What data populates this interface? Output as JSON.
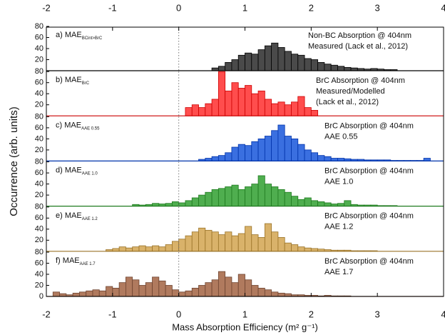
{
  "chart_data": [
    {
      "type": "histogram",
      "label": "a) MAE",
      "label_sub": "BCint>BrC",
      "notes": [
        "Non-BC Absorption @ 404nm",
        "Measured (Lack et al., 2012)"
      ],
      "ylabel": "Occurrence (arb. units)",
      "color": "#4a4a4a",
      "edgecolor": "#000000",
      "bins": [
        0.5,
        0.6,
        0.7,
        0.8,
        0.9,
        1.0,
        1.1,
        1.2,
        1.3,
        1.4,
        1.5,
        1.6,
        1.7,
        1.8,
        1.9,
        2.0,
        2.1,
        2.2,
        2.3,
        2.4,
        2.5,
        2.6,
        2.7,
        2.8,
        2.9,
        3.0,
        3.1,
        3.2,
        3.3
      ],
      "values": [
        5,
        8,
        15,
        20,
        28,
        32,
        30,
        38,
        45,
        50,
        42,
        35,
        30,
        28,
        22,
        20,
        15,
        12,
        10,
        8,
        6,
        5,
        4,
        3,
        4,
        3,
        2,
        2
      ],
      "xlim": [
        -2,
        4
      ],
      "xticks": [
        -2,
        -1,
        0,
        1,
        2,
        3,
        4
      ],
      "ylim": [
        0,
        80
      ],
      "yticks": [
        20,
        40,
        60,
        80
      ],
      "vline": 0
    },
    {
      "type": "histogram",
      "label": "b) MAE",
      "label_sub": "BrC",
      "notes": [
        "BrC Absorption @ 404nm",
        "Measured/Modelled",
        "(Lack et al., 2012)"
      ],
      "color": "#ff4d4d",
      "edgecolor": "#cc0000",
      "bins": [
        0.1,
        0.2,
        0.3,
        0.4,
        0.5,
        0.6,
        0.7,
        0.8,
        0.9,
        1.0,
        1.1,
        1.2,
        1.3,
        1.4,
        1.5,
        1.6,
        1.7,
        1.8,
        1.9,
        2.0,
        2.1
      ],
      "values": [
        15,
        20,
        15,
        22,
        30,
        80,
        45,
        60,
        50,
        55,
        40,
        45,
        30,
        22,
        25,
        20,
        25,
        35,
        15,
        10
      ],
      "xlim": [
        -2,
        4
      ],
      "ylim": [
        0,
        80
      ],
      "yticks": [
        20,
        40,
        60,
        80
      ],
      "vline": 0
    },
    {
      "type": "histogram",
      "label": "c) MAE",
      "label_sub": "AAE 0.55",
      "notes": [
        "BrC Absorption @ 404nm",
        "AAE 0.55"
      ],
      "color": "#3a6fe0",
      "edgecolor": "#0033aa",
      "bins": [
        0.3,
        0.4,
        0.5,
        0.6,
        0.7,
        0.8,
        0.9,
        1.0,
        1.1,
        1.2,
        1.3,
        1.4,
        1.5,
        1.6,
        1.7,
        1.8,
        1.9,
        2.0,
        2.1,
        2.2,
        2.3,
        2.4,
        2.5,
        2.6,
        2.7,
        2.8,
        2.9,
        3.0,
        3.1,
        3.2,
        3.3,
        3.4,
        3.5,
        3.6,
        3.7,
        3.8
      ],
      "values": [
        3,
        5,
        8,
        10,
        15,
        25,
        30,
        28,
        35,
        40,
        45,
        55,
        65,
        45,
        40,
        30,
        20,
        15,
        10,
        8,
        5,
        5,
        4,
        3,
        3,
        2,
        2,
        2,
        2,
        1,
        1,
        1,
        1,
        1,
        5
      ],
      "xlim": [
        -2,
        4
      ],
      "ylim": [
        0,
        80
      ],
      "yticks": [
        20,
        40,
        60,
        80
      ],
      "vline": 0
    },
    {
      "type": "histogram",
      "label": "d) MAE",
      "label_sub": "AAE 1.0",
      "notes": [
        "BrC Absorption @ 404nm",
        "AAE 1.0"
      ],
      "color": "#4fae4f",
      "edgecolor": "#1f7a1f",
      "bins": [
        -0.7,
        -0.6,
        -0.5,
        -0.4,
        -0.3,
        -0.2,
        -0.1,
        0.0,
        0.1,
        0.2,
        0.3,
        0.4,
        0.5,
        0.6,
        0.7,
        0.8,
        0.9,
        1.0,
        1.1,
        1.2,
        1.3,
        1.4,
        1.5,
        1.6,
        1.7,
        1.8,
        1.9,
        2.0,
        2.1,
        2.2,
        2.3,
        2.4,
        2.5,
        2.6,
        2.7,
        2.8,
        2.9,
        3.0,
        3.1,
        3.2,
        3.3
      ],
      "values": [
        3,
        2,
        3,
        5,
        4,
        5,
        8,
        6,
        10,
        15,
        20,
        25,
        30,
        32,
        35,
        38,
        30,
        35,
        40,
        55,
        40,
        35,
        30,
        25,
        18,
        12,
        15,
        10,
        8,
        6,
        4,
        5,
        10,
        3,
        2,
        2,
        2,
        1,
        1,
        1
      ],
      "xlim": [
        -2,
        4
      ],
      "ylim": [
        0,
        80
      ],
      "yticks": [
        20,
        40,
        60,
        80
      ],
      "vline": 0
    },
    {
      "type": "histogram",
      "label": "e) MAE",
      "label_sub": "AAE 1.2",
      "notes": [
        "BrC Absorption @ 404nm",
        "AAE 1.2"
      ],
      "color": "#d9b26a",
      "edgecolor": "#9a7328",
      "bins": [
        -1.1,
        -1.0,
        -0.9,
        -0.8,
        -0.7,
        -0.6,
        -0.5,
        -0.4,
        -0.3,
        -0.2,
        -0.1,
        0.0,
        0.1,
        0.2,
        0.3,
        0.4,
        0.5,
        0.6,
        0.7,
        0.8,
        0.9,
        1.0,
        1.1,
        1.2,
        1.3,
        1.4,
        1.5,
        1.6,
        1.7,
        1.8,
        1.9,
        2.0,
        2.1,
        2.2,
        2.3,
        2.4,
        2.5,
        2.6,
        2.7,
        2.8,
        2.9,
        3.0
      ],
      "values": [
        3,
        5,
        8,
        6,
        8,
        10,
        8,
        10,
        8,
        12,
        18,
        22,
        28,
        35,
        42,
        38,
        35,
        30,
        35,
        28,
        32,
        45,
        30,
        25,
        50,
        35,
        25,
        15,
        12,
        8,
        6,
        5,
        4,
        3,
        2,
        2,
        2,
        1,
        1,
        1,
        1
      ],
      "xlim": [
        -2,
        4
      ],
      "ylim": [
        0,
        80
      ],
      "yticks": [
        20,
        40,
        60,
        80
      ],
      "vline": 0
    },
    {
      "type": "histogram",
      "label": "f) MAE",
      "label_sub": "AAE 1.7",
      "notes": [
        "BrC Absorption @ 404nm",
        "AAE 1.7"
      ],
      "xlabel": "Mass Absorption Efficiency (m² g⁻¹)",
      "color": "#b07a5e",
      "edgecolor": "#6e4430",
      "bins": [
        -1.9,
        -1.8,
        -1.7,
        -1.6,
        -1.5,
        -1.4,
        -1.3,
        -1.2,
        -1.1,
        -1.0,
        -0.9,
        -0.8,
        -0.7,
        -0.6,
        -0.5,
        -0.4,
        -0.3,
        -0.2,
        -0.1,
        0.0,
        0.1,
        0.2,
        0.3,
        0.4,
        0.5,
        0.6,
        0.7,
        0.8,
        0.9,
        1.0,
        1.1,
        1.2,
        1.3,
        1.4,
        1.5,
        1.6,
        1.7,
        1.8,
        1.9,
        2.0,
        2.1,
        2.2,
        2.3,
        2.4,
        2.5,
        2.6
      ],
      "values": [
        8,
        5,
        3,
        6,
        8,
        10,
        12,
        10,
        18,
        15,
        25,
        35,
        30,
        20,
        25,
        35,
        28,
        20,
        12,
        8,
        10,
        15,
        20,
        25,
        30,
        45,
        35,
        25,
        40,
        30,
        20,
        15,
        12,
        8,
        6,
        5,
        3,
        3,
        2,
        2,
        1,
        2,
        1,
        1,
        1
      ],
      "xlim": [
        -2,
        4
      ],
      "xticks": [
        -2,
        -1,
        0,
        1,
        2,
        3,
        4
      ],
      "ylim": [
        0,
        80
      ],
      "yticks": [
        0,
        20,
        40,
        60,
        80
      ],
      "vline": 0
    }
  ]
}
